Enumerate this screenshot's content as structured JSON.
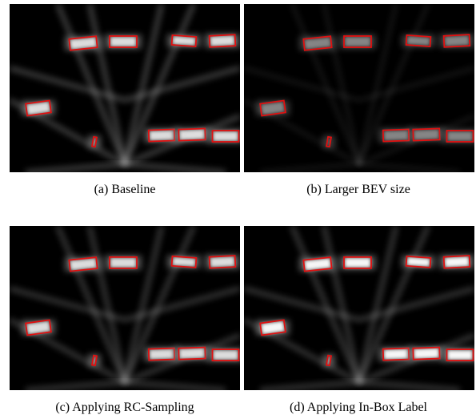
{
  "figure": {
    "panels": [
      {
        "caption": "(a) Baseline"
      },
      {
        "caption": "(b) Larger BEV size"
      },
      {
        "caption": "(c) Applying RC-Sampling"
      },
      {
        "caption": "(d) Applying In-Box Label"
      }
    ]
  }
}
